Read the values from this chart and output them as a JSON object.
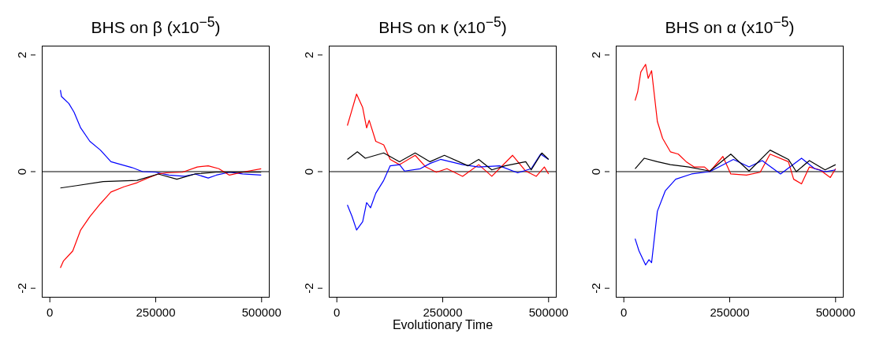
{
  "chart_data": [
    {
      "type": "line",
      "title": "BHS on β  (x10$^{−5}$)",
      "xlim": [
        -19000,
        519000
      ],
      "ylim": [
        -2.16,
        2.16
      ],
      "xticks": [
        0,
        250000,
        500000
      ],
      "yticks": [
        -2,
        0,
        2
      ],
      "marker": "none",
      "line_style": "solid",
      "ref_lines": [
        {
          "axis": "y",
          "value": 0,
          "color": "#000000"
        }
      ],
      "series": [
        {
          "color": "#0000ff",
          "x": [
            24900,
            27400,
            44800,
            57200,
            72800,
            94500,
            119400,
            144300,
            169000,
            194000,
            219000,
            250000,
            281000,
            318000,
            343000,
            374000,
            393000,
            424000,
            455000,
            499000
          ],
          "values": [
            1.4,
            1.29,
            1.17,
            1.02,
            0.75,
            0.52,
            0.37,
            0.17,
            0.12,
            0.07,
            0,
            -0.01,
            -0.06,
            -0.08,
            -0.04,
            -0.11,
            -0.06,
            -0.01,
            -0.04,
            -0.06
          ]
        },
        {
          "color": "#ff0000",
          "x": [
            24900,
            32300,
            54100,
            72800,
            94500,
            119400,
            144300,
            175000,
            206000,
            231000,
            256000,
            275000,
            313000,
            348000,
            374000,
            399000,
            424000,
            461000,
            499000
          ],
          "values": [
            -1.65,
            -1.53,
            -1.36,
            -1.0,
            -0.77,
            -0.55,
            -0.35,
            -0.26,
            -0.19,
            -0.11,
            -0.04,
            -0.02,
            -0.01,
            0.08,
            0.1,
            0.05,
            -0.06,
            0,
            0.05
          ]
        },
        {
          "color": "#000000",
          "x": [
            24900,
            63400,
            126000,
            206000,
            256000,
            300000,
            343000,
            393000,
            443000,
            499000
          ],
          "values": [
            -0.28,
            -0.24,
            -0.17,
            -0.15,
            -0.04,
            -0.13,
            -0.04,
            -0.01,
            -0.01,
            -0.01
          ]
        }
      ]
    },
    {
      "type": "line",
      "title": "BHS on κ  (x10$^{−5}$)",
      "xlabel": "Evolutionary Time",
      "xlim": [
        -19000,
        519000
      ],
      "ylim": [
        -2.16,
        2.16
      ],
      "xticks": [
        0,
        250000,
        500000
      ],
      "yticks": [
        -2,
        0,
        2
      ],
      "marker": "none",
      "line_style": "solid",
      "ref_lines": [
        {
          "axis": "y",
          "value": 0,
          "color": "#000000"
        }
      ],
      "series": [
        {
          "color": "#ff0000",
          "x": [
            24900,
            33000,
            46600,
            61000,
            70300,
            76500,
            92000,
            110700,
            126000,
            148000,
            185000,
            210000,
            235000,
            260000,
            297000,
            335000,
            366000,
            415000,
            446000,
            471000,
            490000,
            500000
          ],
          "values": [
            0.79,
            0.99,
            1.33,
            1.1,
            0.75,
            0.88,
            0.52,
            0.46,
            0.21,
            0.12,
            0.28,
            0.08,
            -0.01,
            0.05,
            -0.08,
            0.12,
            -0.08,
            0.28,
            0.01,
            -0.08,
            0.08,
            -0.04
          ]
        },
        {
          "color": "#0000ff",
          "x": [
            24900,
            36000,
            46600,
            61000,
            70300,
            79600,
            92000,
            110700,
            126000,
            148000,
            160000,
            197000,
            220000,
            245000,
            297000,
            335000,
            384000,
            427000,
            459000,
            481000,
            500000
          ],
          "values": [
            -0.57,
            -0.77,
            -1.0,
            -0.86,
            -0.53,
            -0.62,
            -0.37,
            -0.15,
            0.1,
            0.12,
            0.01,
            0.05,
            0.14,
            0.21,
            0.12,
            0.08,
            0.1,
            -0.02,
            0.05,
            0.3,
            0.21
          ]
        },
        {
          "color": "#000000",
          "x": [
            24900,
            48500,
            67200,
            110700,
            148000,
            185000,
            220000,
            254000,
            310000,
            335000,
            366000,
            397000,
            446000,
            459000,
            484000,
            500000
          ],
          "values": [
            0.21,
            0.34,
            0.23,
            0.32,
            0.17,
            0.32,
            0.17,
            0.28,
            0.1,
            0.21,
            0.03,
            0.1,
            0.17,
            0.03,
            0.32,
            0.21
          ]
        }
      ]
    },
    {
      "type": "line",
      "title": "BHS on α  (x10$^{−5}$)",
      "xlim": [
        -19000,
        519000
      ],
      "ylim": [
        -2.16,
        2.16
      ],
      "xticks": [
        0,
        250000,
        500000
      ],
      "yticks": [
        -2,
        0,
        2
      ],
      "marker": "none",
      "line_style": "solid",
      "ref_lines": [
        {
          "axis": "y",
          "value": 0,
          "color": "#000000"
        }
      ],
      "series": [
        {
          "color": "#ff0000",
          "x": [
            26600,
            32800,
            40200,
            51400,
            57500,
            65600,
            79200,
            91600,
            110000,
            128700,
            147300,
            165800,
            190600,
            203000,
            233900,
            252500,
            289600,
            322000,
            345300,
            388600,
            401000,
            419600,
            438100,
            462900,
            487600,
            500000
          ],
          "values": [
            1.22,
            1.37,
            1.71,
            1.84,
            1.6,
            1.73,
            0.86,
            0.57,
            0.34,
            0.3,
            0.17,
            0.08,
            0.08,
            0,
            0.26,
            -0.04,
            -0.06,
            -0.01,
            0.3,
            0.17,
            -0.13,
            -0.21,
            0.08,
            0.03,
            -0.1,
            0.05
          ]
        },
        {
          "color": "#0000ff",
          "x": [
            26600,
            35900,
            51400,
            59400,
            65600,
            79200,
            97800,
            122500,
            159700,
            203000,
            258700,
            295700,
            326700,
            370000,
            419600,
            450500,
            475200,
            500000
          ],
          "values": [
            -1.15,
            -1.36,
            -1.6,
            -1.51,
            -1.56,
            -0.68,
            -0.33,
            -0.13,
            -0.04,
            0,
            0.21,
            0.08,
            0.19,
            -0.04,
            0.23,
            0.05,
            0,
            0.03
          ]
        },
        {
          "color": "#000000",
          "x": [
            26600,
            48300,
            79200,
            110000,
            153500,
            203000,
            252500,
            295700,
            345300,
            388600,
            407200,
            438100,
            475200,
            500000
          ],
          "values": [
            0.05,
            0.23,
            0.17,
            0.12,
            0.08,
            0.01,
            0.3,
            0.01,
            0.37,
            0.21,
            0,
            0.19,
            0.03,
            0.12
          ]
        }
      ]
    }
  ]
}
